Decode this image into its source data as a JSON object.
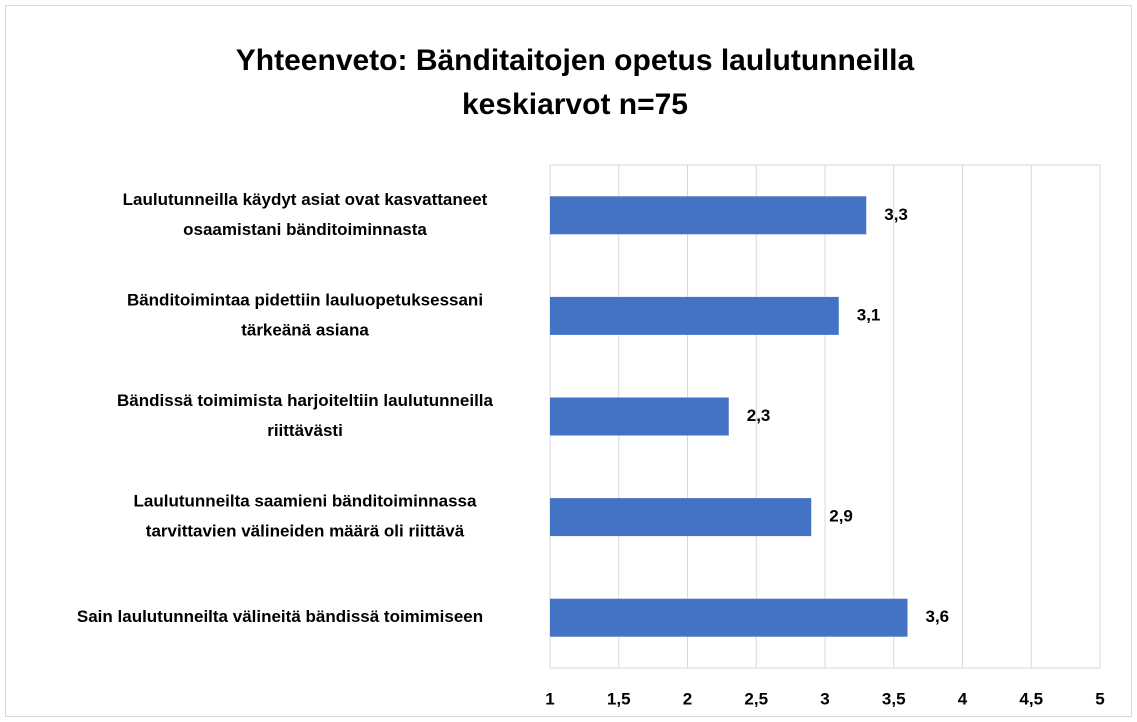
{
  "chart_data": {
    "type": "barh",
    "title": [
      "Yhteenveto: Bänditaitojen opetus laulutunneilla",
      "keskiarvot  n=75"
    ],
    "categories": [
      [
        "Laulutunneilla käydyt  asiat ovat kasvattaneet",
        "osaamistani bänditoiminnasta"
      ],
      [
        "Bänditoimintaa  pidettiin lauluopetuksessani",
        "tärkeänä asiana"
      ],
      [
        "Bändissä toimimista harjoiteltiin  laulutunneilla",
        "riittävästi"
      ],
      [
        "Laulutunneilta saamieni bänditoiminnassa",
        "tarvittavien  välineiden määrä  oli riittävä"
      ],
      [
        "Sain laulutunneilta välineitä  bändissä toimimiseen"
      ]
    ],
    "values": [
      3.3,
      3.1,
      2.3,
      2.9,
      3.6
    ],
    "value_labels": [
      "3,3",
      "3,1",
      "2,3",
      "2,9",
      "3,6"
    ],
    "color": "#4472c4",
    "xlim": [
      1,
      5
    ],
    "xticks": [
      1,
      {
        "value": 1.5,
        "label": "1,5"
      },
      2,
      {
        "value": 2.5,
        "label": "2,5"
      },
      3,
      {
        "value": 3.5,
        "label": "3,5"
      },
      4,
      {
        "value": 4.5,
        "label": "4,5"
      },
      5
    ],
    "grid": true
  }
}
